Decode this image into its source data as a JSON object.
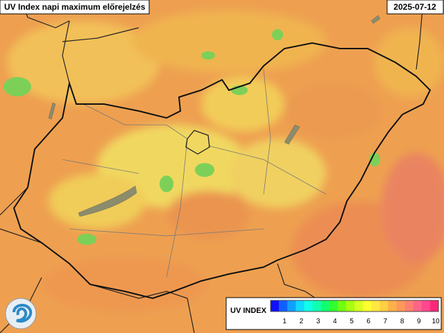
{
  "header": {
    "title": "UV Index napi maximum előrejelzés",
    "date": "2025-07-12"
  },
  "legend": {
    "title": "UV INDEX",
    "labels": [
      1,
      2,
      3,
      4,
      5,
      6,
      7,
      8,
      9,
      10
    ],
    "colors": [
      "#1010ff",
      "#1060ff",
      "#10a0ff",
      "#10d8ff",
      "#10ffe8",
      "#10ffb0",
      "#10ff70",
      "#30ff30",
      "#70ff10",
      "#a8ff10",
      "#d8ff20",
      "#ffff30",
      "#ffe840",
      "#ffd040",
      "#ffb048",
      "#ff9858",
      "#ff8070",
      "#ff6488",
      "#ff4890",
      "#ff2878"
    ]
  }
}
